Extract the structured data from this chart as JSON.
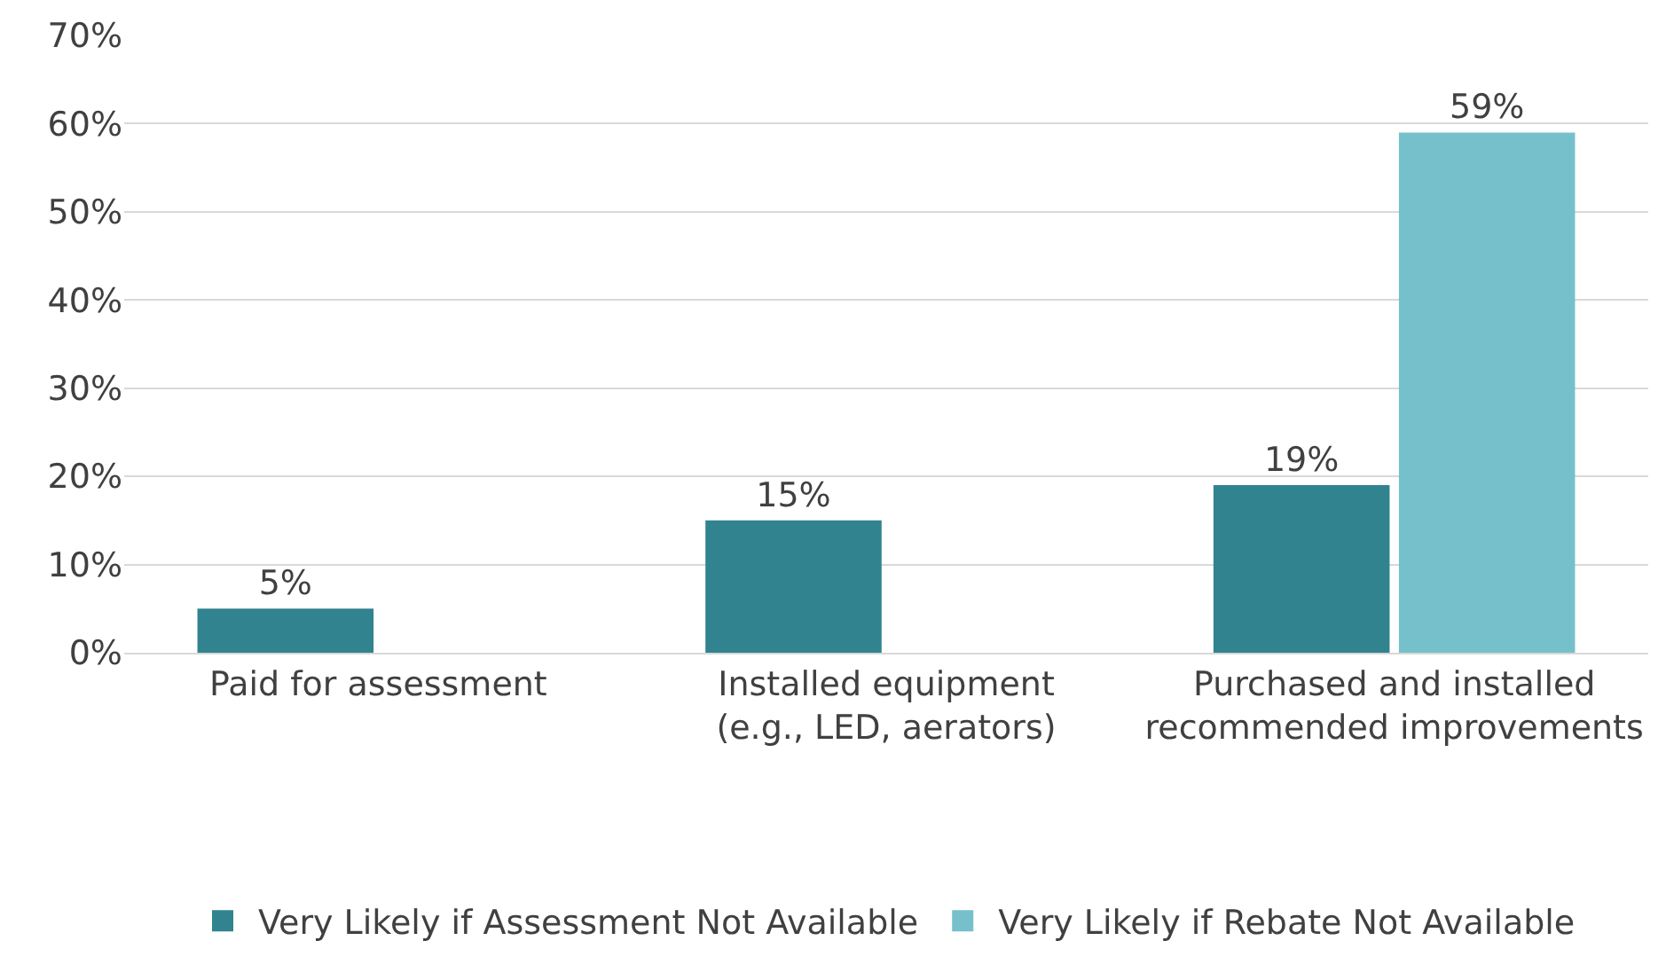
{
  "chart_data": {
    "type": "bar",
    "categories": [
      "Paid for assessment",
      "Installed equipment (e.g., LED, aerators)",
      "Purchased and installed recommended improvements"
    ],
    "series": [
      {
        "name": "Very Likely if Assessment Not Available",
        "color": "#31838f",
        "values": [
          5,
          15,
          19
        ],
        "value_labels": [
          "5%",
          "15%",
          "19%"
        ]
      },
      {
        "name": "Very Likely if Rebate Not Available",
        "color": "#76c0cc",
        "values": [
          null,
          null,
          59
        ],
        "value_labels": [
          null,
          null,
          "59%"
        ]
      }
    ],
    "ylim": [
      0,
      70
    ],
    "yticks": [
      {
        "value": 0,
        "label": "0%"
      },
      {
        "value": 10,
        "label": "10%"
      },
      {
        "value": 20,
        "label": "20%"
      },
      {
        "value": 30,
        "label": "30%"
      },
      {
        "value": 40,
        "label": "40%"
      },
      {
        "value": 50,
        "label": "50%"
      },
      {
        "value": 60,
        "label": "60%"
      },
      {
        "value": 70,
        "label": "70%"
      }
    ],
    "grid": "y",
    "legend": "bottom"
  }
}
